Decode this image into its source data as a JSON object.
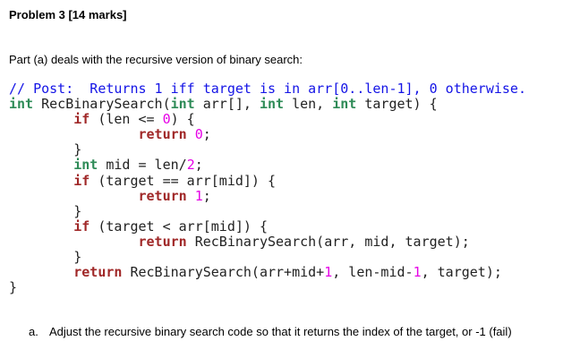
{
  "title": "Problem 3 [14 marks]",
  "intro": "Part (a) deals with the recursive version of binary search:",
  "code": [
    [
      {
        "t": "comment",
        "v": "// Post:  Returns 1 iff target is in arr[0..len-1], 0 otherwise."
      }
    ],
    [
      {
        "t": "type",
        "v": "int"
      },
      {
        "t": "plain",
        "v": " RecBinarySearch("
      },
      {
        "t": "type",
        "v": "int"
      },
      {
        "t": "plain",
        "v": " arr[], "
      },
      {
        "t": "type",
        "v": "int"
      },
      {
        "t": "plain",
        "v": " len, "
      },
      {
        "t": "type",
        "v": "int"
      },
      {
        "t": "plain",
        "v": " target) {"
      }
    ],
    [
      {
        "t": "plain",
        "v": "        "
      },
      {
        "t": "kw",
        "v": "if"
      },
      {
        "t": "plain",
        "v": " (len <= "
      },
      {
        "t": "num",
        "v": "0"
      },
      {
        "t": "plain",
        "v": ") {"
      }
    ],
    [
      {
        "t": "plain",
        "v": "                "
      },
      {
        "t": "kw",
        "v": "return"
      },
      {
        "t": "plain",
        "v": " "
      },
      {
        "t": "num",
        "v": "0"
      },
      {
        "t": "plain",
        "v": ";"
      }
    ],
    [
      {
        "t": "plain",
        "v": "        }"
      }
    ],
    [
      {
        "t": "plain",
        "v": "        "
      },
      {
        "t": "type",
        "v": "int"
      },
      {
        "t": "plain",
        "v": " mid = len/"
      },
      {
        "t": "num",
        "v": "2"
      },
      {
        "t": "plain",
        "v": ";"
      }
    ],
    [
      {
        "t": "plain",
        "v": "        "
      },
      {
        "t": "kw",
        "v": "if"
      },
      {
        "t": "plain",
        "v": " (target == arr[mid]) {"
      }
    ],
    [
      {
        "t": "plain",
        "v": "                "
      },
      {
        "t": "kw",
        "v": "return"
      },
      {
        "t": "plain",
        "v": " "
      },
      {
        "t": "num",
        "v": "1"
      },
      {
        "t": "plain",
        "v": ";"
      }
    ],
    [
      {
        "t": "plain",
        "v": "        }"
      }
    ],
    [
      {
        "t": "plain",
        "v": "        "
      },
      {
        "t": "kw",
        "v": "if"
      },
      {
        "t": "plain",
        "v": " (target < arr[mid]) {"
      }
    ],
    [
      {
        "t": "plain",
        "v": "                "
      },
      {
        "t": "kw",
        "v": "return"
      },
      {
        "t": "plain",
        "v": " RecBinarySearch(arr, mid, target);"
      }
    ],
    [
      {
        "t": "plain",
        "v": "        }"
      }
    ],
    [
      {
        "t": "plain",
        "v": "        "
      },
      {
        "t": "kw",
        "v": "return"
      },
      {
        "t": "plain",
        "v": " RecBinarySearch(arr+mid+"
      },
      {
        "t": "num",
        "v": "1"
      },
      {
        "t": "plain",
        "v": ", len-mid-"
      },
      {
        "t": "num",
        "v": "1"
      },
      {
        "t": "plain",
        "v": ", target);"
      }
    ],
    [
      {
        "t": "plain",
        "v": "}"
      }
    ]
  ],
  "question": {
    "label": "a.",
    "text": "Adjust the recursive binary search code so that it returns the index of the target, or -1 (fail)"
  }
}
